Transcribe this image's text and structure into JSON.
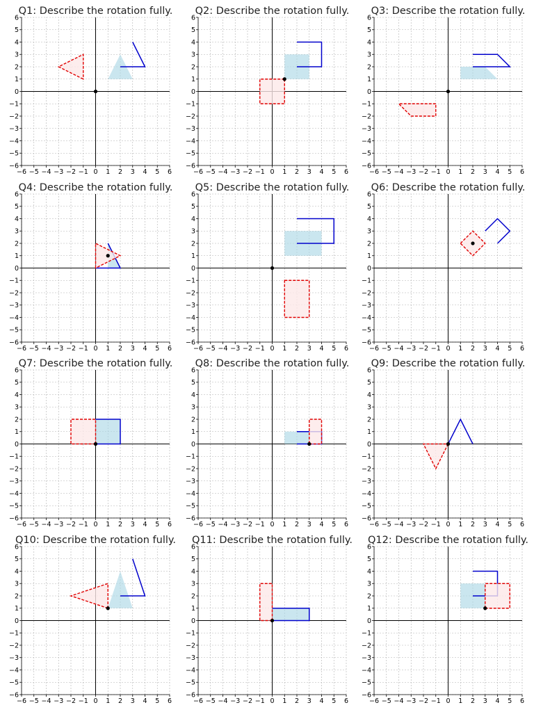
{
  "worksheet": {
    "colors": {
      "object_fill": "#add8e6",
      "image_line": "#0000cc",
      "answer_line": "#e00000",
      "answer_fill": "#fde9e9",
      "centre_point": "#000000",
      "grid": "#b0b0b0"
    },
    "axes": {
      "x_range": [
        -6,
        6
      ],
      "y_range": [
        -6,
        6
      ],
      "x_ticks": [
        "−6",
        "−5",
        "−4",
        "−3",
        "−2",
        "−1",
        "0",
        "1",
        "2",
        "3",
        "4",
        "5",
        "6"
      ],
      "y_ticks": [
        "−6",
        "−5",
        "−4",
        "−3",
        "−2",
        "−1",
        "0",
        "1",
        "2",
        "3",
        "4",
        "5",
        "6"
      ]
    },
    "questions": [
      {
        "title": "Q1: Describe the rotation fully.",
        "object": [
          [
            1,
            1
          ],
          [
            2,
            3
          ],
          [
            3,
            1
          ]
        ],
        "image": [
          [
            3,
            4
          ],
          [
            4,
            2
          ],
          [
            2,
            2
          ]
        ],
        "answer": [
          [
            -1,
            1
          ],
          [
            -3,
            2
          ],
          [
            -1,
            3
          ]
        ],
        "centre": [
          0,
          0
        ]
      },
      {
        "title": "Q2: Describe the rotation fully.",
        "object": [
          [
            1,
            1
          ],
          [
            3,
            1
          ],
          [
            3,
            3
          ],
          [
            1,
            3
          ]
        ],
        "image": [
          [
            2,
            4
          ],
          [
            4,
            4
          ],
          [
            4,
            2
          ],
          [
            2,
            2
          ]
        ],
        "answer": [
          [
            1,
            1
          ],
          [
            1,
            -1
          ],
          [
            -1,
            -1
          ],
          [
            -1,
            1
          ]
        ],
        "centre": [
          1,
          1
        ]
      },
      {
        "title": "Q3: Describe the rotation fully.",
        "object": [
          [
            1,
            1
          ],
          [
            4,
            1
          ],
          [
            3,
            2
          ],
          [
            1,
            2
          ]
        ],
        "image": [
          [
            2,
            3
          ],
          [
            4,
            3
          ],
          [
            5,
            2
          ],
          [
            2,
            2
          ]
        ],
        "answer": [
          [
            -1,
            -1
          ],
          [
            -4,
            -1
          ],
          [
            -3,
            -2
          ],
          [
            -1,
            -2
          ]
        ],
        "centre": [
          0,
          0
        ]
      },
      {
        "title": "Q4: Describe the rotation fully.",
        "object": [
          [
            1,
            0
          ],
          [
            2,
            0
          ],
          [
            1,
            2
          ]
        ],
        "image": [
          [
            1,
            2
          ],
          [
            2,
            0
          ],
          [
            0,
            0
          ]
        ],
        "answer": [
          [
            0,
            0
          ],
          [
            0,
            2
          ],
          [
            2,
            1
          ]
        ],
        "centre": [
          1,
          1
        ]
      },
      {
        "title": "Q5: Describe the rotation fully.",
        "object": [
          [
            1,
            1
          ],
          [
            4,
            1
          ],
          [
            4,
            3
          ],
          [
            1,
            3
          ]
        ],
        "image": [
          [
            2,
            4
          ],
          [
            5,
            4
          ],
          [
            5,
            2
          ],
          [
            2,
            2
          ]
        ],
        "answer": [
          [
            1,
            -1
          ],
          [
            3,
            -1
          ],
          [
            3,
            -4
          ],
          [
            1,
            -4
          ]
        ],
        "centre": [
          0,
          0
        ]
      },
      {
        "title": "Q6: Describe the rotation fully.",
        "object": [],
        "image": [
          [
            3,
            3
          ],
          [
            4,
            4
          ],
          [
            5,
            3
          ],
          [
            4,
            2
          ]
        ],
        "answer": [
          [
            1,
            2
          ],
          [
            2,
            3
          ],
          [
            3,
            2
          ],
          [
            2,
            1
          ]
        ],
        "centre": [
          2,
          2
        ]
      },
      {
        "title": "Q7: Describe the rotation fully.",
        "object": [
          [
            0,
            0
          ],
          [
            2,
            0
          ],
          [
            2,
            2
          ],
          [
            0,
            2
          ]
        ],
        "image": [
          [
            0,
            2
          ],
          [
            2,
            2
          ],
          [
            2,
            0
          ],
          [
            0,
            0
          ]
        ],
        "answer": [
          [
            0,
            0
          ],
          [
            -2,
            0
          ],
          [
            -2,
            2
          ],
          [
            0,
            2
          ]
        ],
        "centre": [
          0,
          0
        ]
      },
      {
        "title": "Q8: Describe the rotation fully.",
        "object": [
          [
            1,
            0
          ],
          [
            3,
            0
          ],
          [
            3,
            1
          ],
          [
            1,
            1
          ]
        ],
        "image": [
          [
            2,
            1
          ],
          [
            4,
            1
          ],
          [
            4,
            0
          ],
          [
            2,
            0
          ]
        ],
        "answer": [
          [
            3,
            0
          ],
          [
            4,
            0
          ],
          [
            4,
            2
          ],
          [
            3,
            2
          ]
        ],
        "centre": [
          3,
          0
        ]
      },
      {
        "title": "Q9: Describe the rotation fully.",
        "object": [
          [
            0,
            0
          ],
          [
            0.2,
            0
          ],
          [
            0,
            0.2
          ]
        ],
        "image": [
          [
            0,
            0
          ],
          [
            1,
            2
          ],
          [
            2,
            0
          ]
        ],
        "answer": [
          [
            0,
            0
          ],
          [
            -1,
            -2
          ],
          [
            -2,
            0
          ]
        ],
        "centre": [
          0,
          0
        ]
      },
      {
        "title": "Q10: Describe the rotation fully.",
        "object": [
          [
            1,
            1
          ],
          [
            2,
            4
          ],
          [
            3,
            1
          ]
        ],
        "image": [
          [
            3,
            5
          ],
          [
            4,
            2
          ],
          [
            2,
            2
          ]
        ],
        "answer": [
          [
            1,
            1
          ],
          [
            -2,
            2
          ],
          [
            1,
            3
          ]
        ],
        "centre": [
          1,
          1
        ]
      },
      {
        "title": "Q11: Describe the rotation fully.",
        "object": [
          [
            0,
            0
          ],
          [
            3,
            0
          ],
          [
            3,
            1
          ],
          [
            0,
            1
          ]
        ],
        "image": [
          [
            0,
            0
          ],
          [
            3,
            0
          ],
          [
            3,
            1
          ],
          [
            0,
            1
          ]
        ],
        "answer": [
          [
            0,
            0
          ],
          [
            0,
            3
          ],
          [
            -1,
            3
          ],
          [
            -1,
            0
          ]
        ],
        "centre": [
          0,
          0
        ]
      },
      {
        "title": "Q12: Describe the rotation fully.",
        "object": [
          [
            1,
            1
          ],
          [
            3,
            1
          ],
          [
            3,
            3
          ],
          [
            1,
            3
          ]
        ],
        "image": [
          [
            2,
            4
          ],
          [
            4,
            4
          ],
          [
            4,
            2
          ],
          [
            2,
            2
          ]
        ],
        "answer": [
          [
            3,
            1
          ],
          [
            5,
            1
          ],
          [
            5,
            3
          ],
          [
            3,
            3
          ]
        ],
        "centre": [
          3,
          1
        ]
      }
    ]
  }
}
